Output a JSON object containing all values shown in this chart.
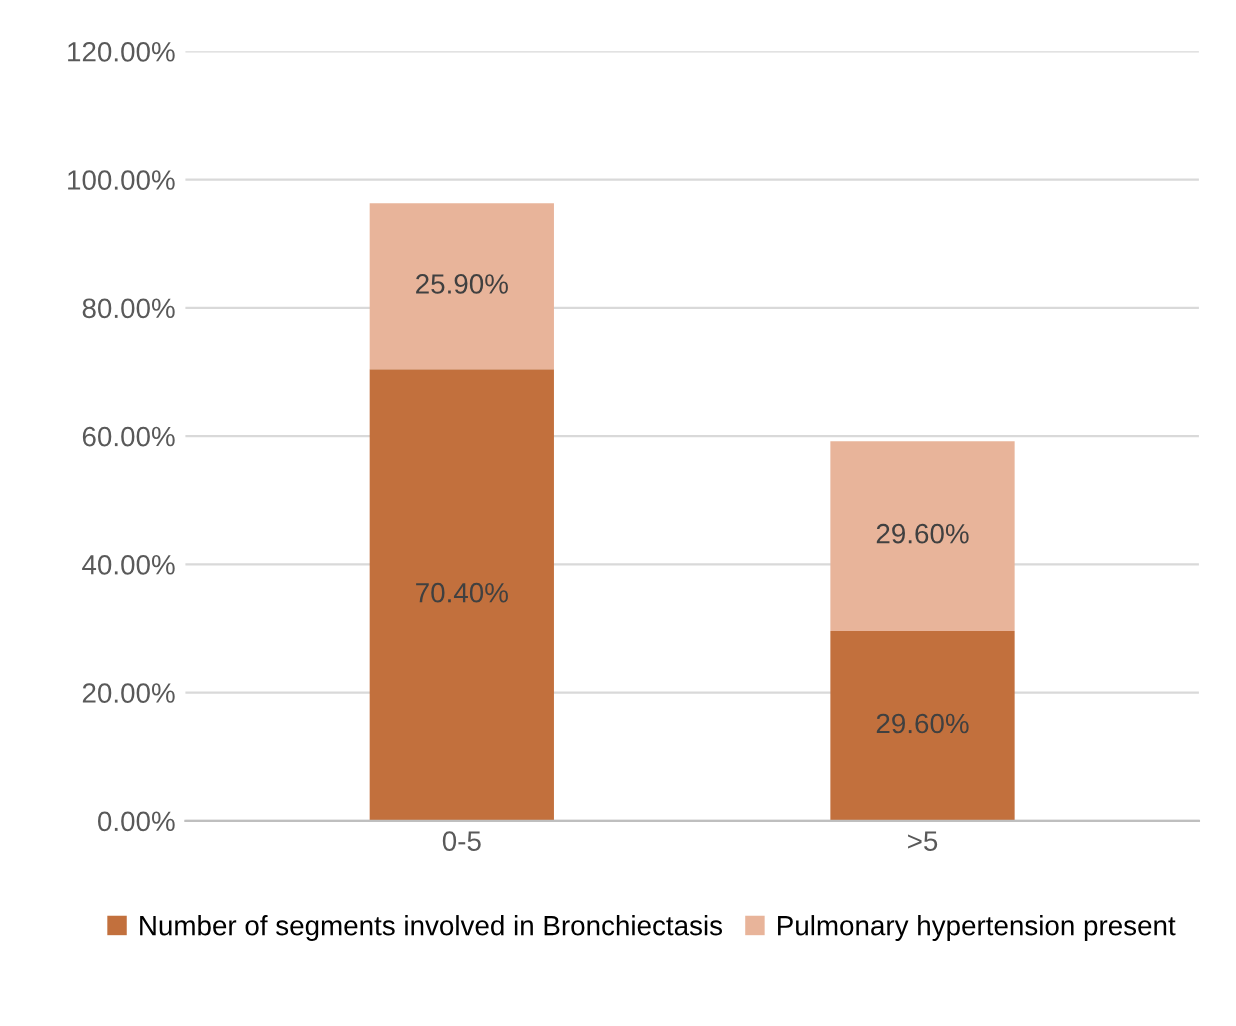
{
  "chart_data": {
    "type": "bar",
    "stacked": true,
    "categories": [
      "0-5",
      ">5"
    ],
    "series": [
      {
        "name": "Number of segments involved in Bronchiectasis",
        "color": "#c2703d",
        "values": [
          70.4,
          29.6
        ],
        "value_labels": [
          "70.40%",
          "29.60%"
        ]
      },
      {
        "name": "Pulmonary hypertension present",
        "color": "#e8b49a",
        "values": [
          25.9,
          29.6
        ],
        "value_labels": [
          "25.90%",
          "29.60%"
        ]
      }
    ],
    "ylim": [
      0,
      120
    ],
    "yticks": [
      {
        "value": 0,
        "label": "0.00%"
      },
      {
        "value": 20,
        "label": "20.00%"
      },
      {
        "value": 40,
        "label": "40.00%"
      },
      {
        "value": 60,
        "label": "60.00%"
      },
      {
        "value": 80,
        "label": "80.00%"
      },
      {
        "value": 100,
        "label": "100.00%"
      },
      {
        "value": 120,
        "label": "120.00%"
      }
    ],
    "grid": "y",
    "legend": "bottom"
  }
}
